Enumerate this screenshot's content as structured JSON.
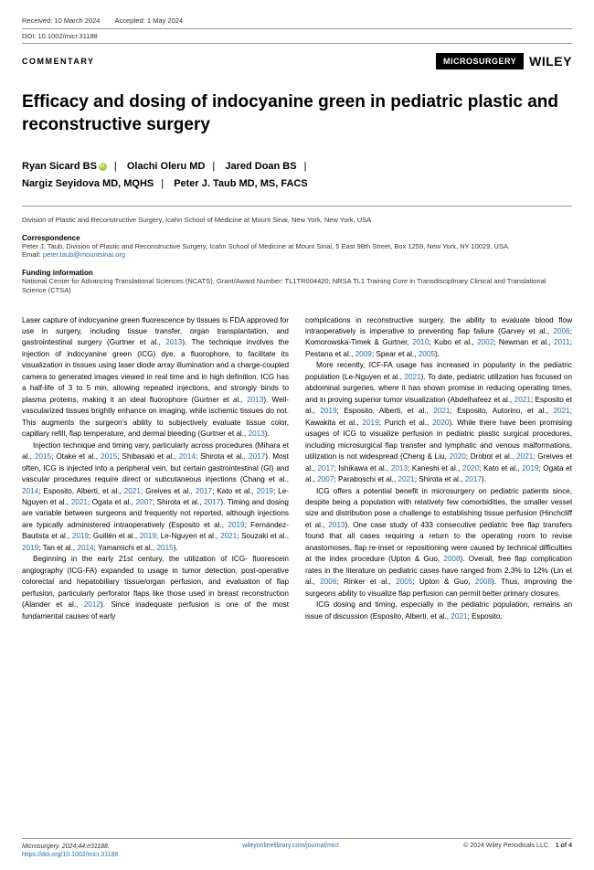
{
  "meta": {
    "received": "Received: 10 March 2024",
    "accepted": "Accepted: 1 May 2024",
    "doi": "DOI: 10.1002/micr.31188"
  },
  "header": {
    "type": "COMMENTARY",
    "badge": "MICROSURGERY",
    "publisher": "WILEY"
  },
  "title": "Efficacy and dosing of indocyanine green in pediatric plastic and reconstructive surgery",
  "authors": {
    "a1": "Ryan Sicard BS",
    "a2": "Olachi Oleru MD",
    "a3": "Jared Doan BS",
    "a4": "Nargiz Seyidova MD, MQHS",
    "a5": "Peter J. Taub MD, MS, FACS"
  },
  "affiliation": "Division of Plastic and Reconstructive Surgery, Icahn School of Medicine at Mount Sinai, New York, New York, USA",
  "correspondence": {
    "label": "Correspondence",
    "text": "Peter J. Taub, Division of Plastic and Reconstructive Surgery, Icahn School of Medicine at Mount Sinai, 5 East 98th Street, Box 1259, New York, NY 10029, USA.",
    "email_label": "Email: ",
    "email": "peter.taub@mountsinai.org"
  },
  "funding": {
    "label": "Funding information",
    "text": "National Center for Advancing Translational Sciences (NCATS), Grant/Award Number: TL1TR004420; NRSA TL1 Training Core in Transdisciplinary Clinical and Translational Science (CTSA)"
  },
  "body": {
    "left": {
      "p1a": "Laser capture of indocyanine green fluorescence by tissues is FDA approved for use in surgery, including tissue transfer, organ transplantation, and gastrointestinal surgery (Gurtner et al., ",
      "p1c1": "2013",
      "p1b": "). The technique involves the injection of indocyanine green (ICG) dye, a fluorophore, to facilitate its visualization in tissues using laser diode array illumination and a charge-coupled camera to generated images viewed in real time and in high definition. ICG has a half-life of 3 to 5 min, allowing repeated injections, and strongly binds to plasma proteins, making it an ideal fluorophore (Gurtner et al., ",
      "p1c2": "2013",
      "p1c": "). Well-vascularized tissues brightly enhance on imaging, while ischemic tissues do not. This augments the surgeon's ability to subjectively evaluate tissue color, capillary refill, flap temperature, and dermal bleeding (Gurtner et al., ",
      "p1c3": "2013",
      "p1d": ").",
      "p2a": "Injection technique and timing vary, particularly across procedures (Mihara et al., ",
      "p2c1": "2015",
      "p2b": "; Otake et al., ",
      "p2c2": "2015",
      "p2c": "; Shibasaki et al., ",
      "p2c3": "2014",
      "p2d": "; Shirota et al., ",
      "p2c4": "2017",
      "p2e": "). Most often, ICG is injected into a peripheral vein, but certain gastrointestinal (GI) and vascular procedures require direct or subcutaneous injections (Chang et al., ",
      "p2c5": "2014",
      "p2f": "; Esposito, Alberti, et al., ",
      "p2c6": "2021",
      "p2g": "; Greives et al., ",
      "p2c7": "2017",
      "p2h": "; Kato et al., ",
      "p2c8": "2019",
      "p2i": "; Le-Nguyen et al., ",
      "p2c9": "2021",
      "p2j": "; Ogata et al., ",
      "p2c10": "2007",
      "p2k": "; Shirota et al., ",
      "p2c11": "2017",
      "p2l": "). Timing and dosing are variable between surgeons and frequently not reported, although injections are typically administered intraoperatively (Esposito et al., ",
      "p2c12": "2019",
      "p2m": "; Fernández-Bautista et al., ",
      "p2c13": "2019",
      "p2n": "; Guillén et al., ",
      "p2c14": "2019",
      "p2o": "; Le-Nguyen et al., ",
      "p2c15": "2021",
      "p2p": "; Souzaki et al., ",
      "p2c16": "2019",
      "p2q": "; Tan et al., ",
      "p2c17": "2014",
      "p2r": "; Yamamichi et al., ",
      "p2c18": "2015",
      "p2s": ").",
      "p3a": "Beginning in the early 21st century, the utilization of ICG- fluorescein angiography (ICG-FA) expanded to usage in tumor detection, post-operative colorectal and hepatobiliary tissue/organ perfusion, and evaluation of flap perfusion, particularly perforator flaps like those used in breast reconstruction (Alander et al., ",
      "p3c1": "2012",
      "p3b": "). Since inadequate perfusion is one of the most fundamental causes of early"
    },
    "right": {
      "p1a": "complications in reconstructive surgery, the ability to evaluate blood flow intraoperatively is imperative to preventing flap failure (Garvey et al., ",
      "p1c1": "2006",
      "p1b": "; Komorowska-Timek & Gurtner, ",
      "p1c2": "2010",
      "p1c": "; Kubo et al., ",
      "p1c3": "2002",
      "p1d": "; Newman et al., ",
      "p1c4": "2011",
      "p1e": "; Pestana et al., ",
      "p1c5": "2009",
      "p1f": "; Spear et al., ",
      "p1c6": "2005",
      "p1g": ").",
      "p2a": "More recently, ICF-FA usage has increased in popularity in the pediatric population (Le-Nguyen et al., ",
      "p2c1": "2021",
      "p2b": "). To date, pediatric utilization has focused on abdominal surgeries, where it has shown promise in reducing operating times, and in proving superior tumor visualization (Abdelhafeez et al., ",
      "p2c2": "2021",
      "p2c": "; Esposito et al., ",
      "p2c3": "2019",
      "p2d": "; Esposito, Alberti, et al., ",
      "p2c4": "2021",
      "p2e": "; Esposito, Autorino, et al., ",
      "p2c5": "2021",
      "p2f": "; Kawakita et al., ",
      "p2c6": "2019",
      "p2g": "; Purich et al., ",
      "p2c7": "2020",
      "p2h": "). While there have been promising usages of ICG to visualize perfusion in pediatric plastic surgical procedures, including microsurgical flap transfer and lymphatic and venous malformations, utilization is not widespread (Cheng & Liu, ",
      "p2c8": "2020",
      "p2i": "; Drobot et al., ",
      "p2c9": "2021",
      "p2j": "; Greives et al., ",
      "p2c10": "2017",
      "p2k": "; Ishikawa et al., ",
      "p2c11": "2013",
      "p2l": "; Kaneshi et al., ",
      "p2c12": "2020",
      "p2m": "; Kato et al., ",
      "p2c13": "2019",
      "p2n": "; Ogata et al., ",
      "p2c14": "2007",
      "p2o": "; Paraboschi et al., ",
      "p2c15": "2021",
      "p2p": "; Shirota et al., ",
      "p2c16": "2017",
      "p2q": ").",
      "p3a": "ICG offers a potential benefit in microsurgery on pediatric patients since, despite being a population with relatively few comorbidities, the smaller vessel size and distribution pose a challenge to establishing tissue perfusion (Hinchcliff et al., ",
      "p3c1": "2013",
      "p3b": "). One case study of 433 consecutive pediatric free flap transfers found that all cases requiring a return to the operating room to revise anastomoses, flap re-inset or repositioning were caused by technical difficulties at the index procedure (Upton & Guo, ",
      "p3c2": "2008",
      "p3c": "). Overall, free flap complication rates in the literature on pediatric cases have ranged from 2.3% to 12% (Lin et al., ",
      "p3c3": "2006",
      "p3d": "; Rinker et al., ",
      "p3c4": "2005",
      "p3e": "; Upton & Guo, ",
      "p3c5": "2008",
      "p3f": "). Thus, improving the surgeons ability to visualize flap perfusion can permit better primary closures.",
      "p4a": "ICG dosing and timing, especially in the pediatric population, remains an issue of discussion (Esposito, Alberti, et al., ",
      "p4c1": "2021",
      "p4b": "; Esposito,"
    }
  },
  "footer": {
    "cite": "Microsurgery. 2024;44:e31188.",
    "doi_link": "https://doi.org/10.1002/micr.31188",
    "journal_url": "wileyonlinelibrary.com/journal/micr",
    "copyright": "© 2024 Wiley Periodicals LLC.",
    "page": "1 of 4"
  }
}
